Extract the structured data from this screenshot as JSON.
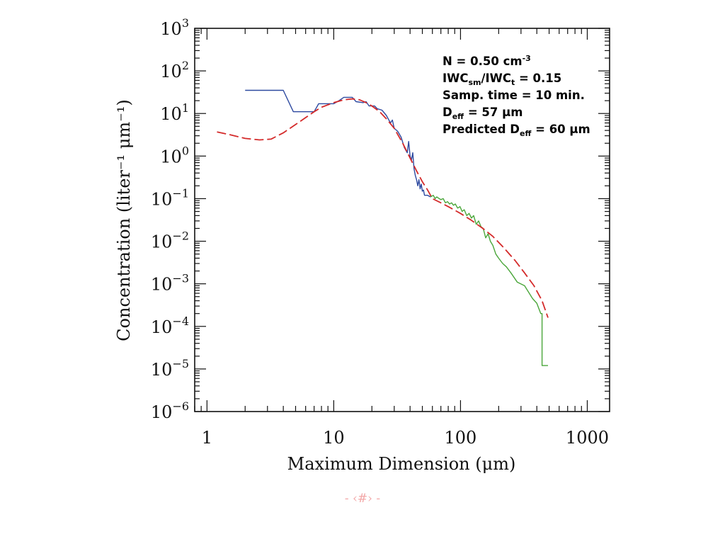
{
  "chart_data": {
    "type": "line",
    "x_scale": "log",
    "y_scale": "log",
    "xlim": [
      0.8,
      1500
    ],
    "ylim": [
      1e-06,
      1000
    ],
    "xlabel": "Maximum Dimension (μm)",
    "ylabel": "Concentration (liter⁻¹ μm⁻¹)",
    "x_ticks": [
      {
        "value": 1,
        "label": "1"
      },
      {
        "value": 10,
        "label": "10"
      },
      {
        "value": 100,
        "label": "100"
      },
      {
        "value": 1000,
        "label": "1000"
      }
    ],
    "y_ticks": [
      {
        "value": 1000.0,
        "base": "10",
        "exp": "3"
      },
      {
        "value": 100.0,
        "base": "10",
        "exp": "2"
      },
      {
        "value": 10.0,
        "base": "10",
        "exp": "1"
      },
      {
        "value": 1.0,
        "base": "10",
        "exp": "0"
      },
      {
        "value": 0.1,
        "base": "10",
        "exp": "−1"
      },
      {
        "value": 0.01,
        "base": "10",
        "exp": "−2"
      },
      {
        "value": 0.001,
        "base": "10",
        "exp": "−3"
      },
      {
        "value": 0.0001,
        "base": "10",
        "exp": "−4"
      },
      {
        "value": 1e-05,
        "base": "10",
        "exp": "−5"
      },
      {
        "value": 1e-06,
        "base": "10",
        "exp": "−6"
      }
    ],
    "annotations": [
      {
        "parts": [
          [
            "N = 0.50 cm",
            ""
          ],
          [
            "-3",
            "sup"
          ]
        ]
      },
      {
        "parts": [
          [
            "IWC",
            ""
          ],
          [
            "sm",
            "sub"
          ],
          [
            "/IWC",
            ""
          ],
          [
            "t",
            "sub"
          ],
          [
            " = 0.15",
            ""
          ]
        ]
      },
      {
        "parts": [
          [
            "Samp. time = 10 min.",
            ""
          ]
        ]
      },
      {
        "parts": [
          [
            "D",
            ""
          ],
          [
            "eff",
            "sub"
          ],
          [
            " = 57 μm",
            ""
          ]
        ]
      },
      {
        "parts": [
          [
            "Predicted D",
            ""
          ],
          [
            "eff",
            "sub"
          ],
          [
            " = 60 μm",
            ""
          ]
        ]
      }
    ],
    "series": [
      {
        "style": "solid",
        "color": "#2e4aa0",
        "points": [
          [
            2,
            35
          ],
          [
            4,
            35
          ],
          [
            4.8,
            11
          ],
          [
            7,
            11
          ],
          [
            7.6,
            17
          ],
          [
            10,
            17
          ],
          [
            11,
            20
          ],
          [
            12,
            24
          ],
          [
            14,
            24
          ],
          [
            15,
            19
          ],
          [
            17,
            18
          ],
          [
            18,
            19
          ],
          [
            19,
            15
          ],
          [
            21,
            15
          ],
          [
            22,
            13
          ],
          [
            24,
            12
          ],
          [
            26,
            9
          ],
          [
            28,
            6
          ],
          [
            29,
            7
          ],
          [
            30,
            4.5
          ],
          [
            32,
            3.8
          ],
          [
            34,
            2.8
          ],
          [
            36,
            1.6
          ],
          [
            38,
            1.2
          ],
          [
            39,
            2.2
          ],
          [
            40,
            1.0
          ],
          [
            41,
            0.8
          ],
          [
            42,
            1.2
          ],
          [
            43,
            0.5
          ],
          [
            44,
            0.35
          ],
          [
            45,
            0.28
          ],
          [
            46,
            0.2
          ],
          [
            47,
            0.28
          ],
          [
            48,
            0.17
          ],
          [
            49,
            0.22
          ],
          [
            50,
            0.15
          ],
          [
            51,
            0.16
          ],
          [
            52,
            0.12
          ],
          [
            55,
            0.12
          ],
          [
            58,
            0.11
          ]
        ]
      },
      {
        "style": "solid",
        "color": "#4aa63a",
        "points": [
          [
            58,
            0.11
          ],
          [
            61,
            0.12
          ],
          [
            63,
            0.1
          ],
          [
            65,
            0.11
          ],
          [
            68,
            0.1
          ],
          [
            70,
            0.095
          ],
          [
            73,
            0.1
          ],
          [
            76,
            0.08
          ],
          [
            79,
            0.085
          ],
          [
            82,
            0.075
          ],
          [
            85,
            0.08
          ],
          [
            88,
            0.07
          ],
          [
            91,
            0.075
          ],
          [
            95,
            0.06
          ],
          [
            99,
            0.065
          ],
          [
            103,
            0.05
          ],
          [
            107,
            0.055
          ],
          [
            112,
            0.04
          ],
          [
            117,
            0.045
          ],
          [
            122,
            0.035
          ],
          [
            127,
            0.04
          ],
          [
            133,
            0.025
          ],
          [
            139,
            0.03
          ],
          [
            145,
            0.022
          ],
          [
            151,
            0.02
          ],
          [
            158,
            0.012
          ],
          [
            165,
            0.015
          ],
          [
            172,
            0.01
          ],
          [
            180,
            0.008
          ],
          [
            190,
            0.005
          ],
          [
            200,
            0.004
          ],
          [
            215,
            0.003
          ],
          [
            230,
            0.0025
          ],
          [
            250,
            0.0018
          ],
          [
            280,
            0.0011
          ],
          [
            320,
            0.0009
          ],
          [
            370,
            0.00045
          ],
          [
            400,
            0.00035
          ],
          [
            430,
            0.0002
          ],
          [
            440,
            0.0002
          ],
          [
            440,
            1.2e-05
          ],
          [
            490,
            1.2e-05
          ]
        ]
      },
      {
        "style": "dashed",
        "color": "#d42a2a",
        "points": [
          [
            1.2,
            3.7
          ],
          [
            1.5,
            3.2
          ],
          [
            2,
            2.6
          ],
          [
            2.6,
            2.4
          ],
          [
            3.2,
            2.5
          ],
          [
            4,
            3.5
          ],
          [
            5,
            5.5
          ],
          [
            6,
            8
          ],
          [
            7,
            11
          ],
          [
            8,
            14
          ],
          [
            10,
            18
          ],
          [
            12,
            21
          ],
          [
            14,
            22
          ],
          [
            16,
            21
          ],
          [
            18,
            18
          ],
          [
            20,
            15
          ],
          [
            23,
            11
          ],
          [
            26,
            7.5
          ],
          [
            30,
            4.5
          ],
          [
            35,
            2
          ],
          [
            40,
            0.9
          ],
          [
            45,
            0.45
          ],
          [
            50,
            0.25
          ],
          [
            55,
            0.16
          ],
          [
            60,
            0.1
          ],
          [
            70,
            0.08
          ],
          [
            80,
            0.065
          ],
          [
            100,
            0.045
          ],
          [
            120,
            0.032
          ],
          [
            150,
            0.02
          ],
          [
            180,
            0.013
          ],
          [
            220,
            0.007
          ],
          [
            270,
            0.0035
          ],
          [
            320,
            0.0018
          ],
          [
            380,
            0.0009
          ],
          [
            440,
            0.0004
          ],
          [
            490,
            0.00016
          ]
        ]
      }
    ]
  },
  "footer": {
    "page_marker": "- ‹#› -"
  }
}
